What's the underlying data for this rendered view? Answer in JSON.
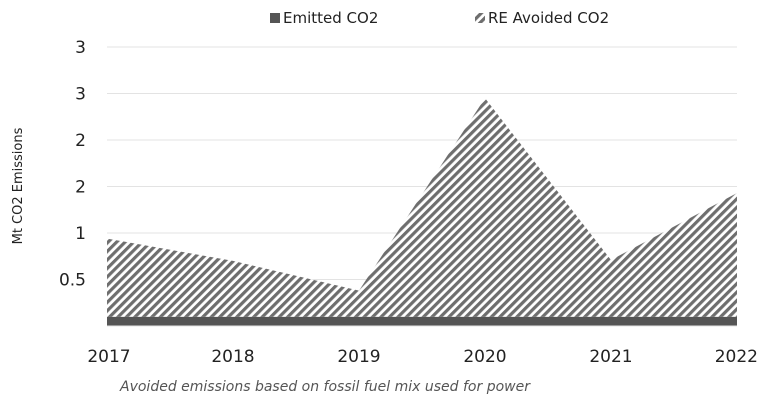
{
  "chart_data": {
    "type": "area",
    "stacked": true,
    "x": [
      "2017",
      "2018",
      "2019",
      "2020",
      "2021",
      "2022"
    ],
    "series": [
      {
        "name": "Emitted CO2",
        "values": [
          0.1,
          0.1,
          0.1,
          0.1,
          0.1,
          0.1
        ],
        "color": "#555555",
        "fill": "solid"
      },
      {
        "name": "RE Avoided CO2",
        "values": [
          0.84,
          0.6,
          0.28,
          2.35,
          0.61,
          1.33
        ],
        "color": "#6e6e6e",
        "fill": "diagonal-hatch"
      }
    ],
    "ylabel": "Mt CO2 Emissions",
    "ylim": [
      0,
      2.5
    ],
    "y_ticks": [
      {
        "value": 0.5,
        "label": "0.5"
      },
      {
        "value": 1.0,
        "label": "1"
      },
      {
        "value": 1.5,
        "label": "2"
      },
      {
        "value": 2.0,
        "label": "2"
      },
      {
        "value": 2.5,
        "label": "3"
      },
      {
        "value": 3.0,
        "label": "3"
      }
    ],
    "y_ticks_shown": "labels as printed (rounded)",
    "grid": true,
    "legend_position": "top-center"
  },
  "footnote": "Avoided emissions based on fossil fuel mix used for power"
}
